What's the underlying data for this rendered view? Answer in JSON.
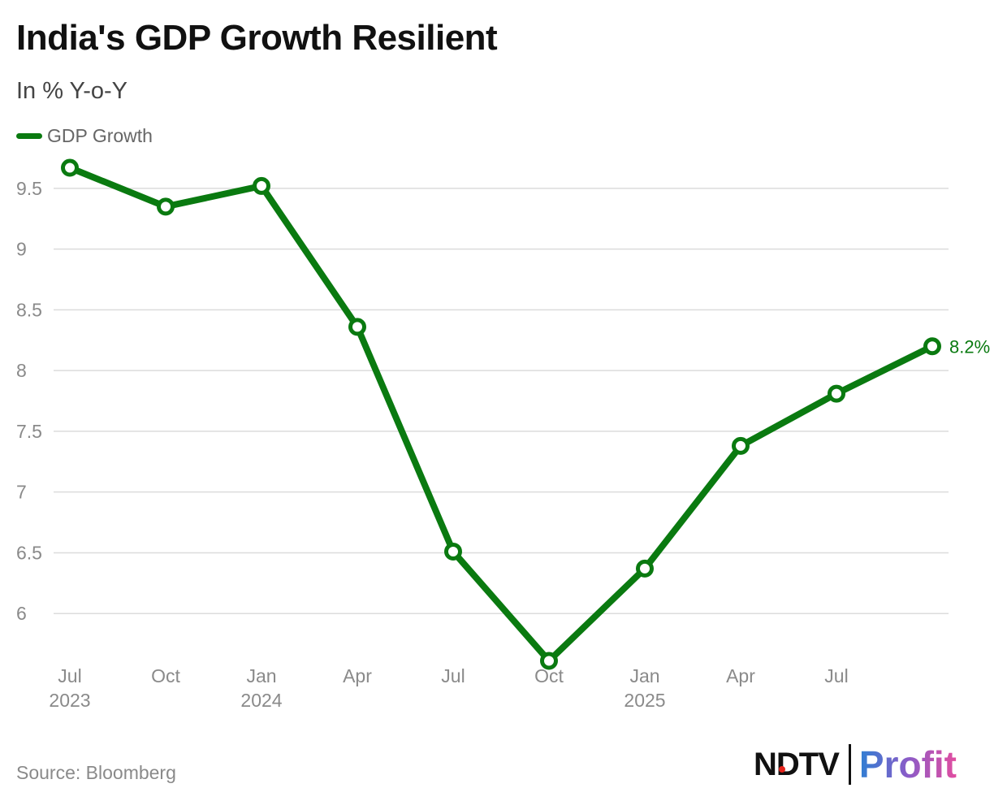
{
  "header": {
    "title": "India's GDP Growth Resilient",
    "subtitle": "In % Y-o-Y"
  },
  "legend": {
    "label": "GDP Growth",
    "color": "#0a7a10"
  },
  "footer": {
    "source": "Source: Bloomberg",
    "logo_ndtv": "NDTV",
    "logo_profit": "Profit"
  },
  "chart_data": {
    "type": "line",
    "title": "India's GDP Growth Resilient",
    "subtitle": "In % Y-o-Y",
    "xlabel": "",
    "ylabel": "",
    "ylim": [
      5.6,
      9.68
    ],
    "yticks": [
      6,
      6.5,
      7,
      7.5,
      8,
      8.5,
      9,
      9.5
    ],
    "ytick_labels": [
      "6",
      "6.5",
      "7",
      "7.5",
      "8",
      "8.5",
      "9",
      "9.5"
    ],
    "xticks": [
      {
        "quarter": 0,
        "label": "Jul",
        "year": "2023"
      },
      {
        "quarter": 1,
        "label": "Oct",
        "year": ""
      },
      {
        "quarter": 2,
        "label": "Jan",
        "year": "2024"
      },
      {
        "quarter": 3,
        "label": "Apr",
        "year": ""
      },
      {
        "quarter": 4,
        "label": "Jul",
        "year": ""
      },
      {
        "quarter": 5,
        "label": "Oct",
        "year": ""
      },
      {
        "quarter": 6,
        "label": "Jan",
        "year": "2025"
      },
      {
        "quarter": 7,
        "label": "Apr",
        "year": ""
      },
      {
        "quarter": 8,
        "label": "Jul",
        "year": ""
      }
    ],
    "xlim": [
      0,
      9
    ],
    "grid": true,
    "legend_position": "top-left",
    "series": [
      {
        "name": "GDP Growth",
        "color": "#0a7a10",
        "x": [
          0,
          1,
          2,
          3,
          4,
          5,
          6,
          7,
          8,
          9
        ],
        "values": [
          9.67,
          9.35,
          9.52,
          8.36,
          6.51,
          5.61,
          6.37,
          7.38,
          7.81,
          8.2
        ]
      }
    ],
    "annotations": [
      {
        "point_index": 9,
        "text": "8.2%"
      }
    ]
  }
}
